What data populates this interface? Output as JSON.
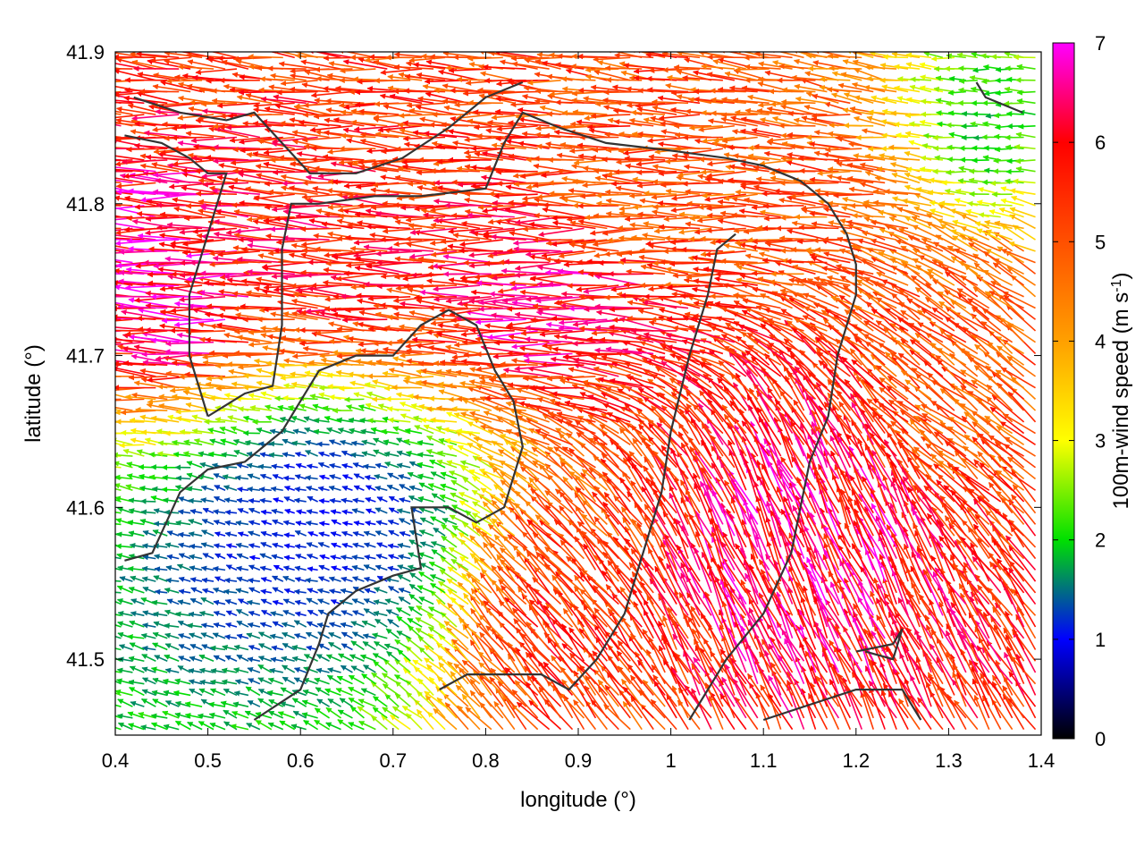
{
  "chart_data": {
    "type": "vector-field",
    "xlabel": "longitude (°)",
    "ylabel": "latitude (°)",
    "xlim": [
      0.4,
      1.4
    ],
    "ylim": [
      41.45,
      41.9
    ],
    "x_ticks": [
      "0.4",
      "0.5",
      "0.6",
      "0.7",
      "0.8",
      "0.9",
      "1",
      "1.1",
      "1.2",
      "1.3",
      "1.4"
    ],
    "y_ticks": [
      "41.5",
      "41.6",
      "41.7",
      "41.8",
      "41.9"
    ],
    "x_tick_values": [
      0.4,
      0.5,
      0.6,
      0.7,
      0.8,
      0.9,
      1.0,
      1.1,
      1.2,
      1.3,
      1.4
    ],
    "y_tick_values": [
      41.5,
      41.6,
      41.7,
      41.8,
      41.9
    ],
    "colorbar": {
      "label_main": "100m-wind speed (m s",
      "label_sup": "-1",
      "label_end": ")",
      "range": [
        0,
        7
      ],
      "ticks": [
        "0",
        "1",
        "2",
        "3",
        "4",
        "5",
        "6",
        "7"
      ],
      "tick_values": [
        0,
        1,
        2,
        3,
        4,
        5,
        6,
        7
      ],
      "palette": [
        "#000000",
        "#0000ff",
        "#00e000",
        "#ffff00",
        "#ffa000",
        "#ff5000",
        "#ff0000",
        "#ff00ff"
      ]
    },
    "wind_regions": [
      {
        "lon": [
          0.4,
          0.55
        ],
        "lat": [
          41.68,
          41.8
        ],
        "u": -6.5,
        "v": 0.3,
        "speed": 6.6
      },
      {
        "lon": [
          0.55,
          0.75
        ],
        "lat": [
          41.7,
          41.82
        ],
        "u": -5.8,
        "v": 0.2,
        "speed": 5.8
      },
      {
        "lon": [
          0.75,
          1.0
        ],
        "lat": [
          41.68,
          41.8
        ],
        "u": -6.2,
        "v": 0.0,
        "speed": 6.2
      },
      {
        "lon": [
          0.85,
          1.2
        ],
        "lat": [
          41.75,
          41.85
        ],
        "u": -5.0,
        "v": 0.1,
        "speed": 5.0
      },
      {
        "lon": [
          0.45,
          0.8
        ],
        "lat": [
          41.5,
          41.68
        ],
        "u": -1.0,
        "v": 0.3,
        "speed": 1.1
      },
      {
        "lon": [
          0.8,
          0.95
        ],
        "lat": [
          41.45,
          41.6
        ],
        "u": -3.0,
        "v": 3.5,
        "speed": 5.5
      },
      {
        "lon": [
          1.0,
          1.3
        ],
        "lat": [
          41.48,
          41.65
        ],
        "u": -2.5,
        "v": 5.5,
        "speed": 6.2
      },
      {
        "lon": [
          1.25,
          1.4
        ],
        "lat": [
          41.6,
          41.75
        ],
        "u": -4.0,
        "v": 3.0,
        "speed": 5.0
      },
      {
        "lon": [
          1.3,
          1.4
        ],
        "lat": [
          41.8,
          41.9
        ],
        "u": -2.0,
        "v": 0.0,
        "speed": 2.0
      }
    ],
    "coastlines": [
      [
        [
          0.42,
          41.87
        ],
        [
          0.47,
          41.86
        ],
        [
          0.52,
          41.855
        ],
        [
          0.55,
          41.86
        ],
        [
          0.58,
          41.84
        ],
        [
          0.61,
          41.82
        ],
        [
          0.66,
          41.82
        ],
        [
          0.71,
          41.83
        ],
        [
          0.76,
          41.85
        ],
        [
          0.8,
          41.87
        ],
        [
          0.84,
          41.88
        ]
      ],
      [
        [
          0.41,
          41.845
        ],
        [
          0.45,
          41.84
        ],
        [
          0.48,
          41.83
        ],
        [
          0.5,
          41.82
        ],
        [
          0.52,
          41.82
        ],
        [
          0.5,
          41.78
        ],
        [
          0.48,
          41.74
        ],
        [
          0.48,
          41.7
        ],
        [
          0.5,
          41.66
        ]
      ],
      [
        [
          0.5,
          41.66
        ],
        [
          0.54,
          41.675
        ],
        [
          0.57,
          41.68
        ],
        [
          0.58,
          41.72
        ],
        [
          0.58,
          41.77
        ],
        [
          0.59,
          41.8
        ],
        [
          0.62,
          41.8
        ],
        [
          0.68,
          41.805
        ],
        [
          0.73,
          41.805
        ],
        [
          0.8,
          41.81
        ],
        [
          0.82,
          41.84
        ],
        [
          0.84,
          41.86
        ],
        [
          0.88,
          41.85
        ],
        [
          0.93,
          41.84
        ],
        [
          1.0,
          41.835
        ],
        [
          1.06,
          41.83
        ],
        [
          1.1,
          41.825
        ],
        [
          1.14,
          41.815
        ],
        [
          1.17,
          41.8
        ],
        [
          1.19,
          41.78
        ],
        [
          1.2,
          41.76
        ],
        [
          1.2,
          41.74
        ],
        [
          1.18,
          41.7
        ],
        [
          1.17,
          41.66
        ],
        [
          1.15,
          41.63
        ],
        [
          1.14,
          41.6
        ],
        [
          1.13,
          41.57
        ],
        [
          1.1,
          41.53
        ],
        [
          1.06,
          41.5
        ],
        [
          1.02,
          41.46
        ]
      ],
      [
        [
          0.41,
          41.565
        ],
        [
          0.44,
          41.57
        ],
        [
          0.47,
          41.61
        ],
        [
          0.5,
          41.625
        ],
        [
          0.54,
          41.63
        ],
        [
          0.58,
          41.65
        ],
        [
          0.62,
          41.69
        ],
        [
          0.66,
          41.7
        ],
        [
          0.7,
          41.7
        ],
        [
          0.73,
          41.72
        ],
        [
          0.76,
          41.73
        ],
        [
          0.79,
          41.72
        ],
        [
          0.81,
          41.69
        ],
        [
          0.83,
          41.67
        ],
        [
          0.84,
          41.64
        ],
        [
          0.82,
          41.6
        ],
        [
          0.79,
          41.59
        ],
        [
          0.76,
          41.6
        ],
        [
          0.72,
          41.6
        ],
        [
          0.73,
          41.56
        ],
        [
          0.7,
          41.555
        ],
        [
          0.66,
          41.545
        ],
        [
          0.63,
          41.53
        ],
        [
          0.62,
          41.51
        ],
        [
          0.6,
          41.48
        ],
        [
          0.55,
          41.46
        ]
      ],
      [
        [
          0.75,
          41.48
        ],
        [
          0.78,
          41.49
        ],
        [
          0.82,
          41.49
        ],
        [
          0.86,
          41.49
        ],
        [
          0.89,
          41.48
        ],
        [
          0.92,
          41.5
        ],
        [
          0.95,
          41.53
        ],
        [
          0.97,
          41.57
        ],
        [
          0.99,
          41.61
        ],
        [
          1.0,
          41.65
        ],
        [
          1.02,
          41.7
        ],
        [
          1.04,
          41.74
        ],
        [
          1.05,
          41.77
        ],
        [
          1.07,
          41.78
        ]
      ],
      [
        [
          1.1,
          41.46
        ],
        [
          1.15,
          41.47
        ],
        [
          1.2,
          41.48
        ],
        [
          1.25,
          41.48
        ],
        [
          1.27,
          41.46
        ]
      ],
      [
        [
          1.33,
          41.88
        ],
        [
          1.34,
          41.87
        ],
        [
          1.38,
          41.86
        ]
      ],
      [
        [
          1.2,
          41.505
        ],
        [
          1.24,
          41.51
        ],
        [
          1.25,
          41.52
        ],
        [
          1.24,
          41.5
        ],
        [
          1.21,
          41.505
        ]
      ]
    ]
  }
}
